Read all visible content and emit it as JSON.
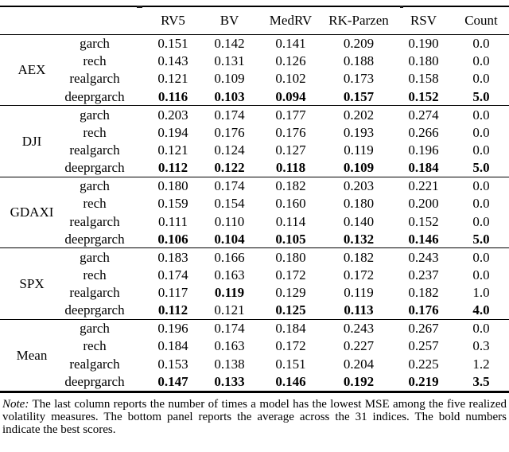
{
  "table": {
    "headers": [
      "RV5",
      "BV",
      "MedRV",
      "RK-Parzen",
      "RSV",
      "Count"
    ],
    "groups": [
      {
        "name": "AEX",
        "rows": [
          {
            "model": "garch",
            "values": [
              "0.151",
              "0.142",
              "0.141",
              "0.209",
              "0.190",
              "0.0"
            ],
            "bold": [
              false,
              false,
              false,
              false,
              false,
              false
            ]
          },
          {
            "model": "rech",
            "values": [
              "0.143",
              "0.131",
              "0.126",
              "0.188",
              "0.180",
              "0.0"
            ],
            "bold": [
              false,
              false,
              false,
              false,
              false,
              false
            ]
          },
          {
            "model": "realgarch",
            "values": [
              "0.121",
              "0.109",
              "0.102",
              "0.173",
              "0.158",
              "0.0"
            ],
            "bold": [
              false,
              false,
              false,
              false,
              false,
              false
            ]
          },
          {
            "model": "deeprgarch",
            "values": [
              "0.116",
              "0.103",
              "0.094",
              "0.157",
              "0.152",
              "5.0"
            ],
            "bold": [
              true,
              true,
              true,
              true,
              true,
              true
            ]
          }
        ]
      },
      {
        "name": "DJI",
        "rows": [
          {
            "model": "garch",
            "values": [
              "0.203",
              "0.174",
              "0.177",
              "0.202",
              "0.274",
              "0.0"
            ],
            "bold": [
              false,
              false,
              false,
              false,
              false,
              false
            ]
          },
          {
            "model": "rech",
            "values": [
              "0.194",
              "0.176",
              "0.176",
              "0.193",
              "0.266",
              "0.0"
            ],
            "bold": [
              false,
              false,
              false,
              false,
              false,
              false
            ]
          },
          {
            "model": "realgarch",
            "values": [
              "0.121",
              "0.124",
              "0.127",
              "0.119",
              "0.196",
              "0.0"
            ],
            "bold": [
              false,
              false,
              false,
              false,
              false,
              false
            ]
          },
          {
            "model": "deeprgarch",
            "values": [
              "0.112",
              "0.122",
              "0.118",
              "0.109",
              "0.184",
              "5.0"
            ],
            "bold": [
              true,
              true,
              true,
              true,
              true,
              true
            ]
          }
        ]
      },
      {
        "name": "GDAXI",
        "rows": [
          {
            "model": "garch",
            "values": [
              "0.180",
              "0.174",
              "0.182",
              "0.203",
              "0.221",
              "0.0"
            ],
            "bold": [
              false,
              false,
              false,
              false,
              false,
              false
            ]
          },
          {
            "model": "rech",
            "values": [
              "0.159",
              "0.154",
              "0.160",
              "0.180",
              "0.200",
              "0.0"
            ],
            "bold": [
              false,
              false,
              false,
              false,
              false,
              false
            ]
          },
          {
            "model": "realgarch",
            "values": [
              "0.111",
              "0.110",
              "0.114",
              "0.140",
              "0.152",
              "0.0"
            ],
            "bold": [
              false,
              false,
              false,
              false,
              false,
              false
            ]
          },
          {
            "model": "deeprgarch",
            "values": [
              "0.106",
              "0.104",
              "0.105",
              "0.132",
              "0.146",
              "5.0"
            ],
            "bold": [
              true,
              true,
              true,
              true,
              true,
              true
            ]
          }
        ]
      },
      {
        "name": "SPX",
        "rows": [
          {
            "model": "garch",
            "values": [
              "0.183",
              "0.166",
              "0.180",
              "0.182",
              "0.243",
              "0.0"
            ],
            "bold": [
              false,
              false,
              false,
              false,
              false,
              false
            ]
          },
          {
            "model": "rech",
            "values": [
              "0.174",
              "0.163",
              "0.172",
              "0.172",
              "0.237",
              "0.0"
            ],
            "bold": [
              false,
              false,
              false,
              false,
              false,
              false
            ]
          },
          {
            "model": "realgarch",
            "values": [
              "0.117",
              "0.119",
              "0.129",
              "0.119",
              "0.182",
              "1.0"
            ],
            "bold": [
              false,
              true,
              false,
              false,
              false,
              false
            ]
          },
          {
            "model": "deeprgarch",
            "values": [
              "0.112",
              "0.121",
              "0.125",
              "0.113",
              "0.176",
              "4.0"
            ],
            "bold": [
              true,
              false,
              true,
              true,
              true,
              true
            ]
          }
        ]
      },
      {
        "name": "Mean",
        "rows": [
          {
            "model": "garch",
            "values": [
              "0.196",
              "0.174",
              "0.184",
              "0.243",
              "0.267",
              "0.0"
            ],
            "bold": [
              false,
              false,
              false,
              false,
              false,
              false
            ]
          },
          {
            "model": "rech",
            "values": [
              "0.184",
              "0.163",
              "0.172",
              "0.227",
              "0.257",
              "0.3"
            ],
            "bold": [
              false,
              false,
              false,
              false,
              false,
              false
            ]
          },
          {
            "model": "realgarch",
            "values": [
              "0.153",
              "0.138",
              "0.151",
              "0.204",
              "0.225",
              "1.2"
            ],
            "bold": [
              false,
              false,
              false,
              false,
              false,
              false
            ]
          },
          {
            "model": "deeprgarch",
            "values": [
              "0.147",
              "0.133",
              "0.146",
              "0.192",
              "0.219",
              "3.5"
            ],
            "bold": [
              true,
              true,
              true,
              true,
              true,
              true
            ]
          }
        ]
      }
    ]
  },
  "note": {
    "label": "Note:",
    "text": "The last column reports the number of times a model has the lowest MSE among the five realized volatility measures. The bottom panel reports the average across the 31 indices. The bold numbers indicate the best scores."
  }
}
